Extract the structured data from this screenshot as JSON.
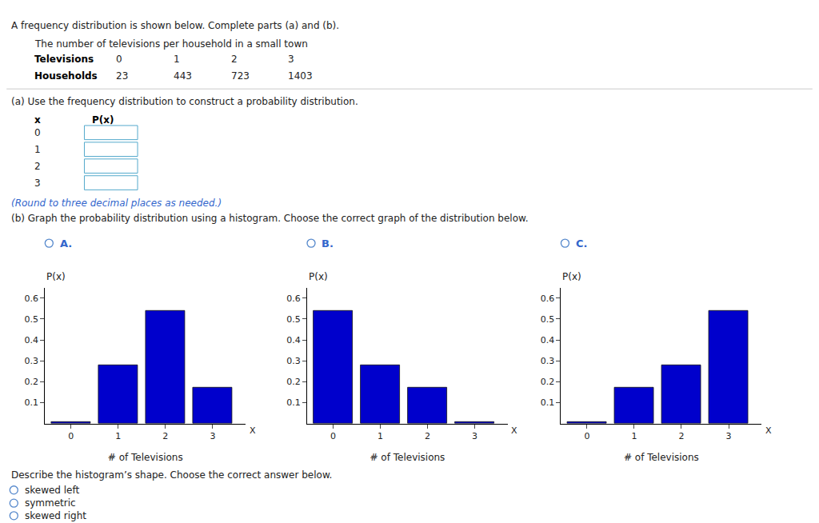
{
  "title": "A frequency distribution is shown below. Complete parts (a) and (b).",
  "subtitle": "The number of televisions per household in a small town",
  "annotations": [
    "Televisions",
    "0",
    "1",
    "2",
    "3",
    "Households",
    "23",
    "443",
    "723",
    "1403",
    "(a) Use the frequency distribution to construct a probability distribution.",
    "x",
    "P(x)",
    "0",
    "1",
    "2",
    "3",
    "(Round to three decimal places as needed.)",
    "(b) Graph the probability distribution using a histogram. Choose the correct graph of the distribution below.",
    "Describe the histogram’s shape. Choose the correct answer below.",
    "skewed left",
    "symmetric",
    "skewed right"
  ],
  "chart_data": [
    {
      "type": "bar",
      "title": "A.",
      "x": [
        0,
        1,
        2,
        3
      ],
      "values": [
        0.009,
        0.279,
        0.541,
        0.171
      ],
      "color": "#0000CC",
      "xlabel": "# of Televisions",
      "ylabel": "P(x)",
      "xlim": [
        -0.55,
        3.7
      ],
      "ylim": [
        0,
        0.65
      ],
      "xticks": [
        0,
        1,
        2,
        3
      ],
      "yticks": [
        0.1,
        0.2,
        0.3,
        0.4,
        0.5,
        0.6
      ],
      "grid": false,
      "annotations": [
        "X"
      ]
    },
    {
      "type": "bar",
      "title": "B.",
      "x": [
        0,
        1,
        2,
        3
      ],
      "values": [
        0.541,
        0.279,
        0.171,
        0.009
      ],
      "color": "#0000CC",
      "xlabel": "# of Televisions",
      "ylabel": "P(x)",
      "xlim": [
        -0.55,
        3.7
      ],
      "ylim": [
        0,
        0.65
      ],
      "xticks": [
        0,
        1,
        2,
        3
      ],
      "yticks": [
        0.1,
        0.2,
        0.3,
        0.4,
        0.5,
        0.6
      ],
      "grid": false,
      "annotations": [
        "X"
      ]
    },
    {
      "type": "bar",
      "title": "C.",
      "x": [
        0,
        1,
        2,
        3
      ],
      "values": [
        0.009,
        0.171,
        0.279,
        0.541
      ],
      "color": "#0000CC",
      "xlabel": "# of Televisions",
      "ylabel": "P(x)",
      "xlim": [
        -0.55,
        3.7
      ],
      "ylim": [
        0,
        0.65
      ],
      "xticks": [
        0,
        1,
        2,
        3
      ],
      "yticks": [
        0.1,
        0.2,
        0.3,
        0.4,
        0.5,
        0.6
      ],
      "grid": false,
      "annotations": [
        "X"
      ]
    }
  ]
}
